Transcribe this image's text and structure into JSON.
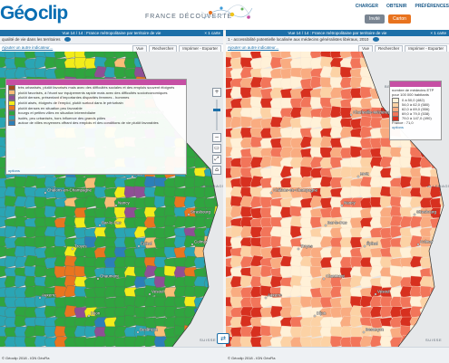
{
  "app": {
    "logo_left": "Gé",
    "logo_right": "clip",
    "brand": "FRANCE DÉCOUVERTE",
    "nav": [
      "CHARGER",
      "OBTENIR",
      "PRÉFÉRENCES"
    ],
    "btn_invite": "Invité",
    "btn_carton": "Carton"
  },
  "left": {
    "title": "Vue 14 / 14 : France métropolitaine par territoire de vie",
    "close": "× 1 carte",
    "subtitle": "qualité de vie dans les territoires",
    "add_indicator": "Ajouter un autre indicateur...",
    "tools": [
      "Vue",
      "Rechercher",
      "Imprimer - Exporter"
    ],
    "legend": [
      {
        "label": "très urbanisés, plutôt favorisés mais avec des difficultés sociales et des emplois souvent éloignés",
        "color": "#a24a1a"
      },
      {
        "label": "plutôt favorisés, à l'écart sur équipements rapide mais avec des difficultés socioéconomiques",
        "color": "#f8bd77"
      },
      {
        "label": "plutôt denses, présentant d'importantes disparités femmes - hommes",
        "color": "#8f4f95"
      },
      {
        "label": "plutôt aisés, éloignés de l'emploi, plutôt surtout dans le périurbain",
        "color": "#f2ec1a"
      },
      {
        "label": "plutôt denses en situation peu favorable",
        "color": "#e97520"
      },
      {
        "label": "bourgs et petites villes en situation intermédiaire",
        "color": "#2fa53f"
      },
      {
        "label": "isolés, peu urbanisés, hors influence des grands pôles",
        "color": "#2aa5b4"
      },
      {
        "label": "autour de villes moyennes offrant des emplois et des conditions de vie plutôt favorables",
        "color": "#2c7fb8"
      }
    ],
    "options": "options",
    "cities": [
      {
        "name": "Charleville-Mézières"
      },
      {
        "name": "Metz"
      },
      {
        "name": "Nancy"
      },
      {
        "name": "Bar-le-Duc"
      },
      {
        "name": "Châlons-en-Champagne"
      },
      {
        "name": "Strasbourg"
      },
      {
        "name": "Troyes"
      },
      {
        "name": "Épinal"
      },
      {
        "name": "Chaumont"
      },
      {
        "name": "Vesoul"
      },
      {
        "name": "Colmar"
      },
      {
        "name": "Auxerre"
      },
      {
        "name": "Dijon"
      },
      {
        "name": "Besançon"
      },
      {
        "name": "Lons-le-Saunier"
      }
    ],
    "regions": [
      "BELGIQUE",
      "ALLEMAGNE",
      "SUISSE"
    ]
  },
  "right": {
    "title": "Vue 14 / 14 : France métropolitaine par territoire de vie",
    "close": "× 1 carte",
    "subtitle": "1 - accessibilité potentielle localisée aux médecins généralistes libéraux, 2010",
    "add_indicator": "Ajouter un autre indicateur...",
    "tools": [
      "Vue",
      "Rechercher",
      "Imprimer - Exporter"
    ],
    "legend_title": "nombre de médecins ETP pour 100 000 habitants",
    "legend": [
      {
        "label": "0 à 50,0 (482)",
        "color": "#fff1d8"
      },
      {
        "label": "54,0 à 62,0 (580)",
        "color": "#fcd2a5"
      },
      {
        "label": "62,0 à 69,0 (556)",
        "color": "#f9ac81"
      },
      {
        "label": "69,0 à 79,0 (538)",
        "color": "#f2755a"
      },
      {
        "label": "79,0 à 147,0 (490)",
        "color": "#d7301f"
      }
    ],
    "legend_france": "France : 71,0",
    "options": "options"
  },
  "footer": {
    "left": "© Géoclip 2018 - IGN GéoFla",
    "right": "© Géoclip 2018 - IGN GéoFla"
  },
  "icons": {
    "zoom_in": "plus-icon",
    "zoom_out": "minus-icon",
    "sync": "sync-icon",
    "info": "info-icon"
  }
}
